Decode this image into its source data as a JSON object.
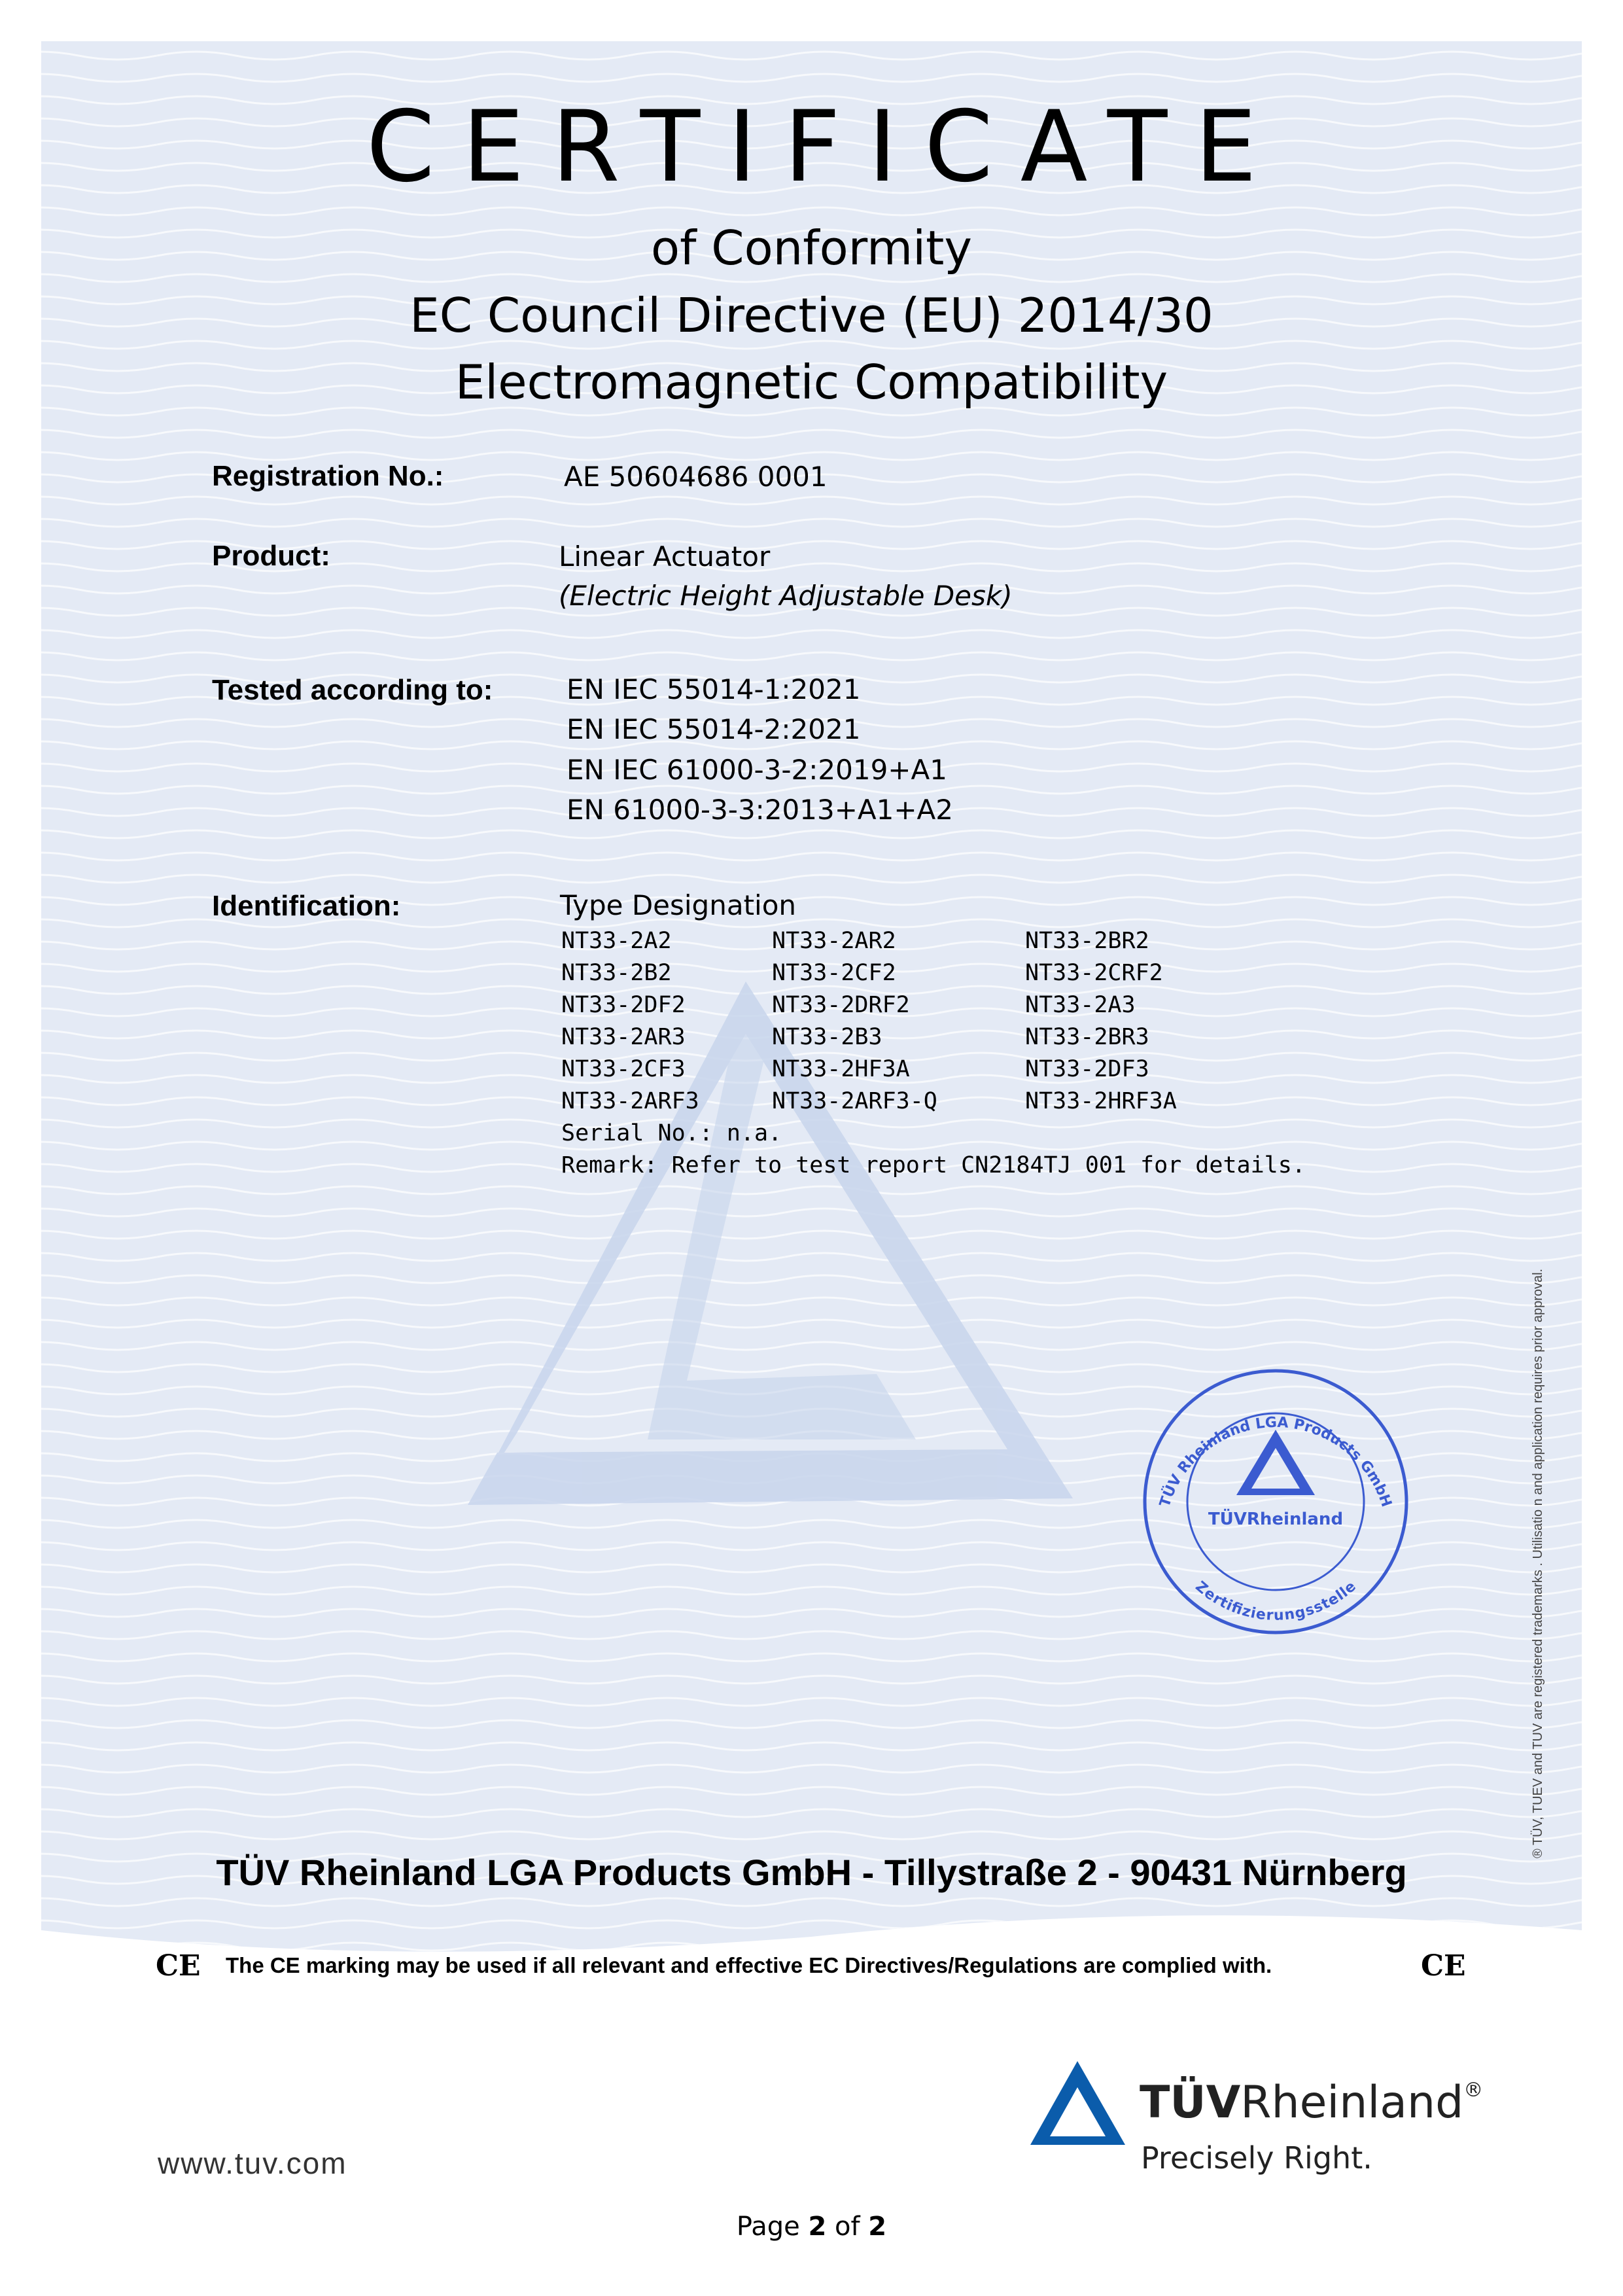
{
  "header": {
    "title": "CERTIFICATE",
    "subtitle_1": "of Conformity",
    "subtitle_2": "EC Council Directive (EU) 2014/30",
    "subtitle_3": "Electromagnetic Compatibility"
  },
  "fields": {
    "registration_label": "Registration No.:",
    "registration_value": "AE 50604686 0001",
    "product_label": "Product:",
    "product_value": "Linear Actuator",
    "product_note": "(Electric Height Adjustable Desk)",
    "tested_label": "Tested according to:",
    "standards": [
      "EN IEC 55014-1:2021",
      "EN IEC 55014-2:2021",
      "EN IEC 61000-3-2:2019+A1",
      "EN 61000-3-3:2013+A1+A2"
    ],
    "identification_label": "Identification:",
    "type_designation_label": "Type Designation",
    "types": [
      [
        "NT33-2A2",
        "NT33-2AR2",
        "NT33-2BR2"
      ],
      [
        "NT33-2B2",
        "NT33-2CF2",
        "NT33-2CRF2"
      ],
      [
        "NT33-2DF2",
        "NT33-2DRF2",
        "NT33-2A3"
      ],
      [
        "NT33-2AR3",
        "NT33-2B3",
        "NT33-2BR3"
      ],
      [
        "NT33-2CF3",
        "NT33-2HF3A",
        "NT33-2DF3"
      ],
      [
        "NT33-2ARF3",
        "NT33-2ARF3-Q",
        "NT33-2HRF3A"
      ]
    ],
    "serial": "Serial No.: n.a.",
    "remark": "Remark: Refer to test report CN2184TJ 001 for details."
  },
  "stamp": {
    "top_text": "TÜV Rheinland LGA Products GmbH",
    "center_text": "TÜVRheinland",
    "bottom_text": "Zertifizierungsstelle",
    "color": "#3b5bd0"
  },
  "legal_notice": "® TÜV, TUEV and TUV are registered trademarks . Utilisatio n and application requires prior approval.",
  "company_line": "TÜV Rheinland LGA Products GmbH - Tillystraße 2 - 90431 Nürnberg",
  "ce": {
    "mark": "CE",
    "notice": "The CE marking may be used if all relevant and effective EC Directives/Regulations are complied with."
  },
  "footer": {
    "website": "www.tuv.com",
    "logo_bold": "TÜV",
    "logo_regular": "Rheinland",
    "logo_reg": "®",
    "tagline": "Precisely Right.",
    "page_prefix": "Page ",
    "page_current": "2",
    "page_mid": " of ",
    "page_total": "2"
  },
  "colors": {
    "background_panel": "#e4eaf5",
    "brand_blue": "#0b5cab",
    "watermark": "#c8d5ec"
  }
}
